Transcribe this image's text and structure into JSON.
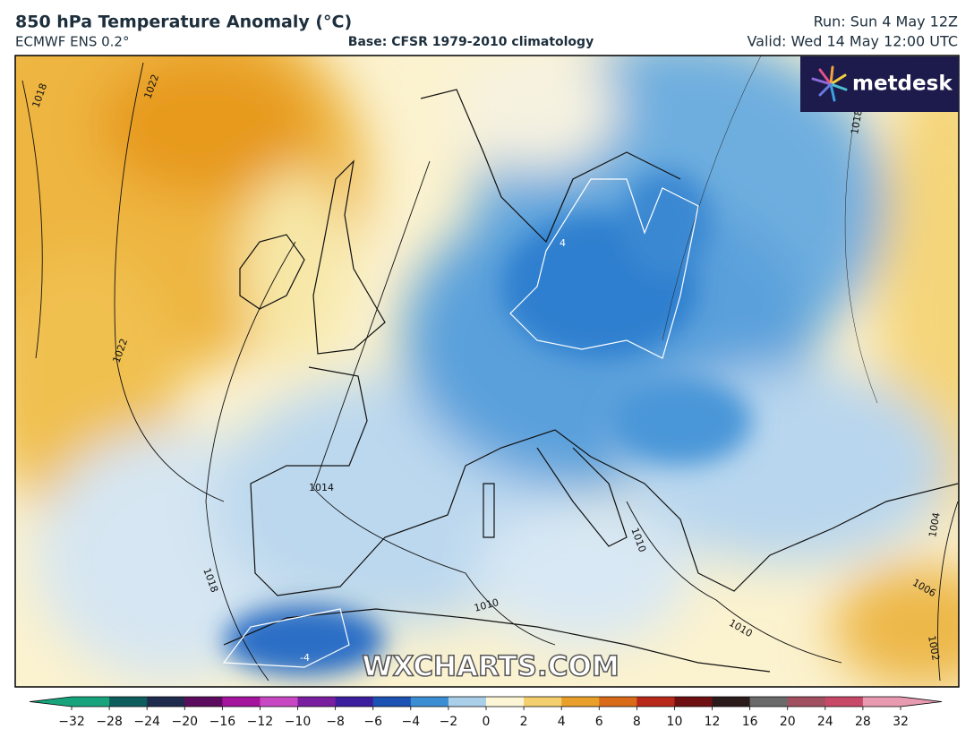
{
  "header": {
    "title": "850 hPa Temperature Anomaly (°C)",
    "model": "ECMWF ENS 0.2°",
    "base": "Base: CFSR 1979-2010 climatology",
    "run": "Run: Sun 4 May 12Z",
    "valid": "Valid: Wed 14 May 12:00 UTC"
  },
  "logo": "metdesk",
  "watermark": "WXCHARTS.COM",
  "isobar_labels": [
    "1018",
    "1022",
    "1022",
    "1014",
    "1018",
    "1010",
    "1010",
    "1010",
    "1018",
    "1006",
    "1004",
    "1002",
    "4",
    "-4"
  ],
  "colorbar": {
    "ticks": [
      {
        "value": -32,
        "label": "−32"
      },
      {
        "value": -28,
        "label": "−28"
      },
      {
        "value": -24,
        "label": "−24"
      },
      {
        "value": -20,
        "label": "−20"
      },
      {
        "value": -16,
        "label": "−16"
      },
      {
        "value": -12,
        "label": "−12"
      },
      {
        "value": -10,
        "label": "−10"
      },
      {
        "value": -8,
        "label": "−8"
      },
      {
        "value": -6,
        "label": "−6"
      },
      {
        "value": -4,
        "label": "−4"
      },
      {
        "value": -2,
        "label": "−2"
      },
      0,
      2,
      4,
      6,
      8,
      10,
      12,
      16,
      20,
      24,
      28,
      32
    ],
    "colors": [
      "#17a37c",
      "#0f5e5e",
      "#1f2b4c",
      "#5c0c5e",
      "#a4149c",
      "#c848c4",
      "#7a1ea0",
      "#3b1e9e",
      "#1b52b4",
      "#3c8ed4",
      "#aacfe9",
      "#fcf6d6",
      "#f4cf6e",
      "#e8a02a",
      "#d86a18",
      "#b8281a",
      "#6e0f12",
      "#2a1a1a",
      "#6a6a6a",
      "#a05060",
      "#c84868",
      "#e89ab0"
    ]
  }
}
